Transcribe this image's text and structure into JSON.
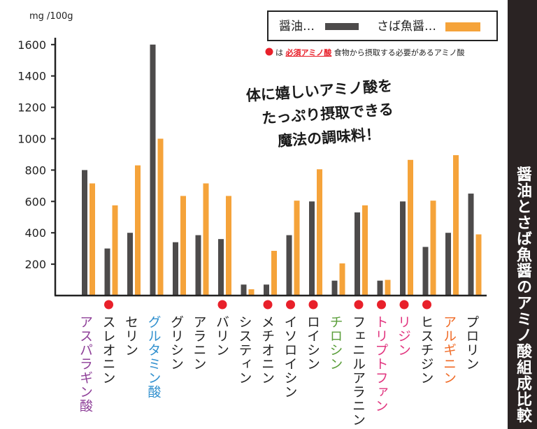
{
  "side_title": "醤油とさば魚醤のアミノ酸組成比較",
  "tagline": [
    "体に嬉しいアミノ酸を",
    "たっぷり摂取できる",
    "魔法の調味料！"
  ],
  "legend_note": {
    "prefix": "は",
    "highlight": "必須アミノ酸",
    "suffix": "食物から摂取する必要があるアミノ酸"
  },
  "colors": {
    "soy": "#4d4b4b",
    "fish": "#f5a33a",
    "essential_marker": "#e8202a",
    "note_highlight": "#e8202a",
    "side_panel": "#2a2323",
    "purple": "#8e3f98",
    "blue": "#2f8fce",
    "green": "#5a9e3a",
    "pink": "#e1357f",
    "orange": "#f06a25",
    "black": "#222222"
  },
  "chart_data": {
    "type": "bar",
    "ylabel": "mg /100g",
    "ylim": [
      0,
      1700
    ],
    "yticks": [
      200,
      400,
      600,
      800,
      1000,
      1200,
      1400,
      1600
    ],
    "grid": false,
    "legend_position": "top-right",
    "categories": [
      "アスパラギン酸",
      "スレオニン",
      "セリン",
      "グルタミン酸",
      "グリシン",
      "アラニン",
      "バリン",
      "システィン",
      "メチオニン",
      "イソロイシン",
      "ロイシン",
      "チロシン",
      "フェニルアラニン",
      "トリプトファン",
      "リジン",
      "ヒスチジン",
      "アルギニン",
      "プロリン"
    ],
    "label_colors": [
      "purple",
      "black",
      "black",
      "blue",
      "black",
      "black",
      "black",
      "black",
      "black",
      "black",
      "black",
      "green",
      "black",
      "pink",
      "pink",
      "black",
      "orange",
      "black"
    ],
    "essential": [
      false,
      true,
      false,
      false,
      false,
      false,
      true,
      false,
      true,
      true,
      true,
      false,
      true,
      true,
      true,
      true,
      false,
      false
    ],
    "series": [
      {
        "name": "醤油",
        "legend_label": "醤油…",
        "color_key": "soy",
        "values": [
          800,
          300,
          400,
          1600,
          340,
          385,
          360,
          70,
          70,
          385,
          600,
          95,
          530,
          95,
          600,
          310,
          400,
          650
        ]
      },
      {
        "name": "さば魚醤",
        "legend_label": "さば魚醤…",
        "color_key": "fish",
        "values": [
          715,
          575,
          830,
          1000,
          635,
          715,
          635,
          40,
          285,
          605,
          805,
          205,
          575,
          100,
          865,
          605,
          895,
          390
        ]
      }
    ]
  }
}
